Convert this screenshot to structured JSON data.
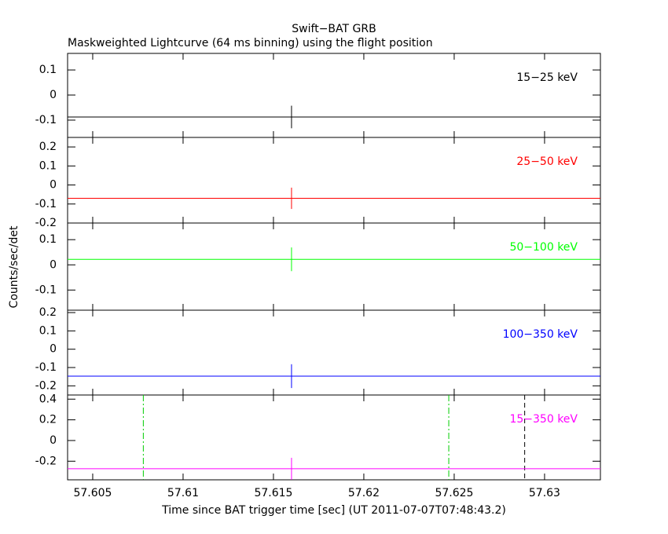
{
  "title": "Swift−BAT GRB",
  "subtitle": "Maskweighted Lightcurve (64 ms binning) using the flight position",
  "ylabel": "Counts/sec/det",
  "xlabel": "Time since BAT trigger time [sec] (UT 2011-07-07T07:48:43.2)",
  "xlim": [
    57.60361,
    57.63309
  ],
  "xticks": [
    57.605,
    57.61,
    57.615,
    57.62,
    57.625,
    57.63
  ],
  "chart_data": [
    {
      "type": "line",
      "label": "15−25 keV",
      "color": "#000000",
      "x": [
        57.616
      ],
      "values": [
        -0.0875
      ],
      "errors": [
        0.045
      ],
      "ylim": [
        -0.169,
        0.166
      ],
      "yticks": [
        -0.1,
        0,
        0.1
      ]
    },
    {
      "type": "line",
      "label": "25−50 keV",
      "color": "#ff0000",
      "x": [
        57.616
      ],
      "values": [
        -0.07
      ],
      "errors": [
        0.056
      ],
      "ylim": [
        -0.2,
        0.25
      ],
      "yticks": [
        -0.2,
        -0.1,
        0,
        0.1,
        0.2
      ]
    },
    {
      "type": "line",
      "label": "50−100 keV",
      "color": "#00ff00",
      "x": [
        57.616
      ],
      "values": [
        0.022
      ],
      "errors": [
        0.047
      ],
      "ylim": [
        -0.18,
        0.166
      ],
      "yticks": [
        -0.1,
        0,
        0.1
      ]
    },
    {
      "type": "line",
      "label": "100−350 keV",
      "color": "#0000ff",
      "x": [
        57.616
      ],
      "values": [
        -0.147
      ],
      "errors": [
        0.065
      ],
      "ylim": [
        -0.25,
        0.213
      ],
      "yticks": [
        -0.2,
        -0.1,
        0,
        0.1,
        0.2
      ]
    },
    {
      "type": "line",
      "label": "15−350 keV",
      "color": "#ff00ff",
      "x": [
        57.616
      ],
      "values": [
        -0.273
      ],
      "errors": [
        0.106
      ],
      "ylim": [
        -0.38,
        0.44
      ],
      "yticks": [
        -0.2,
        0,
        0.2,
        0.4
      ],
      "vlines": [
        {
          "x": 57.6078,
          "color": "#00cc00",
          "style": "dashdot"
        },
        {
          "x": 57.6247,
          "color": "#00cc00",
          "style": "dashdot"
        },
        {
          "x": 57.6289,
          "color": "#000000",
          "style": "dashed"
        }
      ]
    }
  ]
}
